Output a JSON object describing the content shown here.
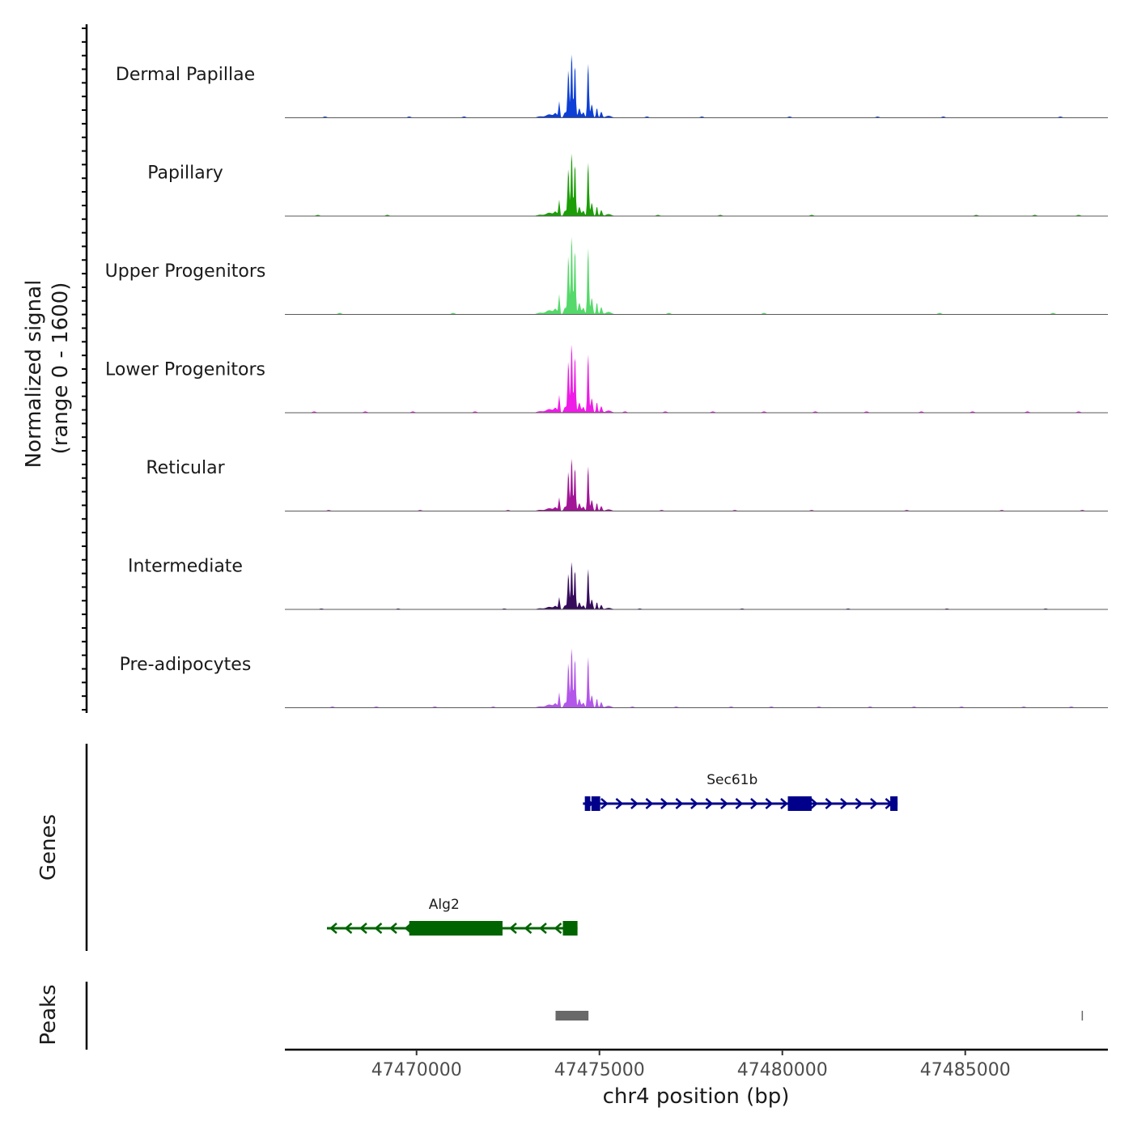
{
  "chart_data": {
    "type": "area",
    "title": "",
    "chrom": "chr4",
    "xlabel": "chr4 position (bp)",
    "xlim": [
      47466400,
      47488900
    ],
    "xticks": [
      47470000,
      47475000,
      47480000,
      47485000
    ],
    "xtick_labels": [
      "47470000",
      "47475000",
      "47480000",
      "47485000"
    ],
    "coverage": {
      "ylabel_line1": "Normalized signal",
      "ylabel_line2": "(range 0 - 1600)",
      "ylim": [
        0,
        1600
      ],
      "tracks": [
        {
          "name": "Dermal Papillae",
          "color": "#0d3fd6",
          "scale": 1.0,
          "noise": [
            47467500,
            47469800,
            47471300,
            47476300,
            47477800,
            47480200,
            47482600,
            47484400,
            47487600
          ]
        },
        {
          "name": "Papillary",
          "color": "#1b9e06",
          "scale": 0.99,
          "noise": [
            47467300,
            47469200,
            47476600,
            47478300,
            47480800,
            47485300,
            47486900,
            47488100
          ]
        },
        {
          "name": "Upper Progenitors",
          "color": "#55d96a",
          "scale": 1.23,
          "noise": [
            47467900,
            47471000,
            47476900,
            47479500,
            47484300,
            47487400
          ]
        },
        {
          "name": "Lower Progenitors",
          "color": "#ee1ce6",
          "scale": 1.08,
          "noise": [
            47467200,
            47468600,
            47469900,
            47471600,
            47475700,
            47476800,
            47478100,
            47479500,
            47480900,
            47482300,
            47483800,
            47485200,
            47486700,
            47488100
          ]
        },
        {
          "name": "Reticular",
          "color": "#a21597",
          "scale": 0.83,
          "noise": [
            47467600,
            47470100,
            47472500,
            47476700,
            47478700,
            47480800,
            47483400,
            47486000,
            47488200
          ]
        },
        {
          "name": "Intermediate",
          "color": "#360b5c",
          "scale": 0.75,
          "noise": [
            47467400,
            47469500,
            47472400,
            47476100,
            47478900,
            47481800,
            47484500,
            47487200
          ]
        },
        {
          "name": "Pre-adipocytes",
          "color": "#b356ea",
          "scale": 0.94,
          "noise": [
            47467700,
            47468900,
            47470500,
            47472100,
            47475900,
            47477100,
            47478600,
            47479700,
            47481000,
            47482400,
            47483600,
            47484900,
            47486600,
            47487900
          ]
        }
      ],
      "profile": [
        {
          "pos": 47473370,
          "height": 0.02,
          "width": 110
        },
        {
          "pos": 47473630,
          "height": 0.05,
          "width": 130
        },
        {
          "pos": 47473800,
          "height": 0.06,
          "width": 60
        },
        {
          "pos": 47473900,
          "height": 0.24,
          "width": 28
        },
        {
          "pos": 47474060,
          "height": 0.08,
          "width": 50
        },
        {
          "pos": 47474150,
          "height": 0.72,
          "width": 32
        },
        {
          "pos": 47474240,
          "height": 1.0,
          "width": 30
        },
        {
          "pos": 47474330,
          "height": 0.82,
          "width": 30
        },
        {
          "pos": 47474450,
          "height": 0.14,
          "width": 45
        },
        {
          "pos": 47474560,
          "height": 0.08,
          "width": 45
        },
        {
          "pos": 47474690,
          "height": 0.83,
          "width": 30
        },
        {
          "pos": 47474790,
          "height": 0.2,
          "width": 40
        },
        {
          "pos": 47474930,
          "height": 0.15,
          "width": 30
        },
        {
          "pos": 47475050,
          "height": 0.09,
          "width": 38
        },
        {
          "pos": 47475250,
          "height": 0.03,
          "width": 110
        }
      ]
    },
    "genes": {
      "ylabel": "Genes",
      "items": [
        {
          "name": "Sec61b",
          "strand": "+",
          "color": "#00008b",
          "start": 47474550,
          "end": 47483150,
          "exons": [
            [
              47474600,
              47474750
            ],
            [
              47474780,
              47475020
            ],
            [
              47480150,
              47480800
            ],
            [
              47482950,
              47483150
            ]
          ],
          "row": 0
        },
        {
          "name": "Alg2",
          "strand": "-",
          "color": "#006400",
          "start": 47467550,
          "end": 47474400,
          "exons": [
            [
              47469800,
              47472350
            ],
            [
              47474000,
              47474400
            ]
          ],
          "row": 1
        }
      ]
    },
    "peaks": {
      "ylabel": "Peaks",
      "color": "#696969",
      "items": [
        [
          47473800,
          47474700
        ],
        [
          47488200,
          47488240
        ]
      ]
    }
  }
}
